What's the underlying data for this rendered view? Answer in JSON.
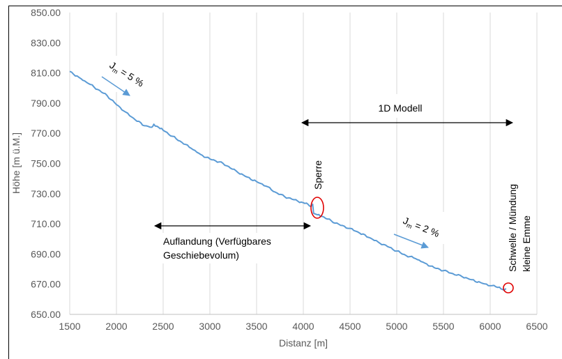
{
  "chart_data": {
    "type": "line",
    "title": "",
    "xlabel": "Distanz [m]",
    "ylabel": "Höhe [m ü.M.]",
    "xlim": [
      1500,
      6500
    ],
    "ylim": [
      650,
      850
    ],
    "x_ticks": [
      "1500",
      "2000",
      "2500",
      "3000",
      "3500",
      "4000",
      "4500",
      "5000",
      "5500",
      "6000",
      "6500"
    ],
    "y_ticks": [
      "650.00",
      "670.00",
      "690.00",
      "710.00",
      "730.00",
      "750.00",
      "770.00",
      "790.00",
      "810.00",
      "830.00",
      "850.00"
    ],
    "grid": "vertical",
    "legend": "none",
    "series": [
      {
        "color": "#5b9bd5",
        "x": [
          1500,
          1600,
          1700,
          1800,
          1900,
          2000,
          2100,
          2200,
          2300,
          2380,
          2400,
          2450,
          2500,
          2600,
          2700,
          2800,
          2900,
          3000,
          3100,
          3200,
          3300,
          3400,
          3500,
          3600,
          3700,
          3800,
          3900,
          4000,
          4050,
          4080,
          4100,
          4110,
          4150,
          4200,
          4300,
          4400,
          4500,
          4600,
          4700,
          4800,
          4900,
          5000,
          5100,
          5200,
          5300,
          5400,
          5500,
          5600,
          5700,
          5800,
          5900,
          6000,
          6100,
          6150,
          6170
        ],
        "y": [
          811,
          807,
          803,
          799,
          795,
          789,
          784,
          779,
          775,
          774,
          776,
          774,
          772,
          768,
          764,
          760,
          756,
          753,
          751,
          748,
          744,
          741,
          738,
          735,
          731,
          728,
          726,
          724,
          723,
          721.5,
          723,
          717,
          716,
          715,
          712,
          709,
          707,
          704,
          701,
          698,
          695,
          692,
          689,
          687,
          684,
          681,
          679,
          677,
          675,
          673,
          671,
          669,
          668,
          666,
          667
        ]
      }
    ]
  },
  "annotations": {
    "slope_upper_prefix": "J",
    "slope_upper_sub": "m",
    "slope_upper_value": " = 5 %",
    "slope_lower_prefix": "J",
    "slope_lower_sub": "m",
    "slope_lower_value": " = 2 %",
    "model_label": "1D Modell",
    "sperre_label": "Sperre",
    "auflandung_line1": "Auflandung  (Verfügbares",
    "auflandung_line2": "Geschiebevolum)",
    "schwelle_line1": "Schwelle / Mündung",
    "schwelle_line2": "kleine Emme"
  },
  "colors": {
    "series": "#5b9bd5",
    "gridline": "#d9d9d9",
    "highlight": "#e00000",
    "arrow": "#000000"
  }
}
